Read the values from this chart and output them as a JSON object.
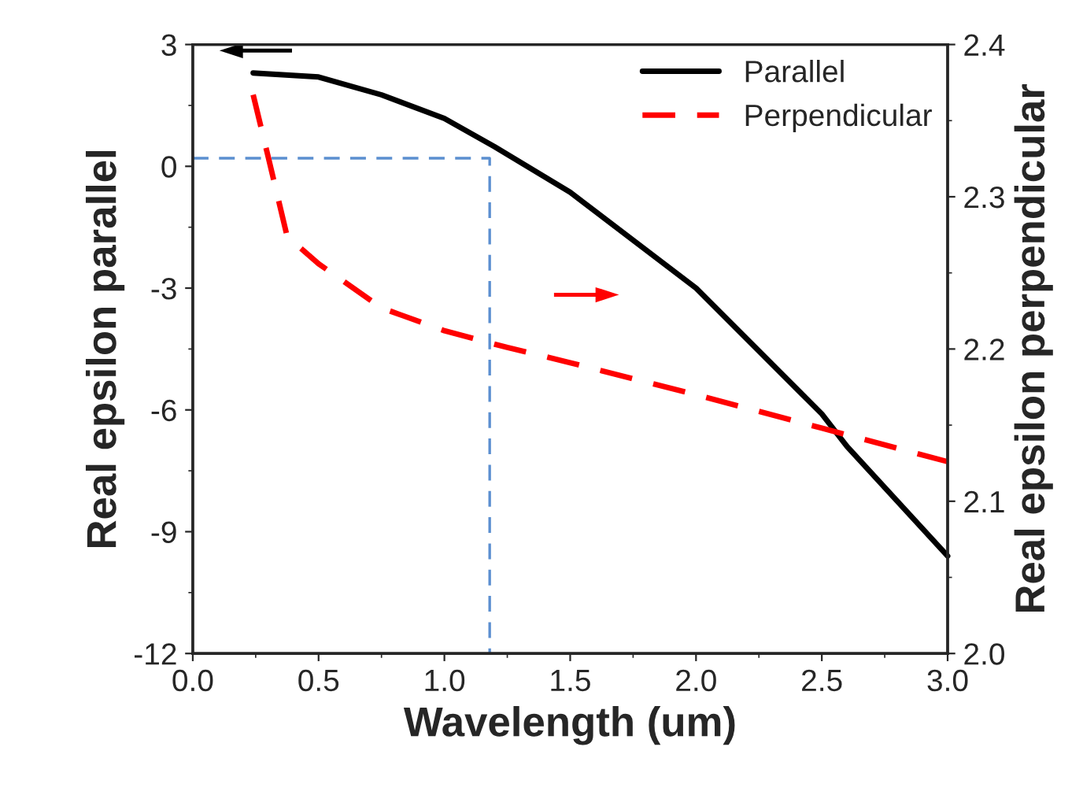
{
  "chart_data": {
    "type": "line",
    "xlabel": "Wavelength (um)",
    "ylabel": "Real epsilon parallel",
    "y2label": "Real epsilon perpendicular",
    "xlim": [
      0.0,
      3.0
    ],
    "xticks": [
      {
        "value": 0,
        "label": "0.0"
      },
      0.5,
      {
        "value": 1,
        "label": "1.0"
      },
      1.5,
      {
        "value": 2,
        "label": "2.0"
      },
      2.5,
      {
        "value": 3,
        "label": "3.0"
      }
    ],
    "ylim": [
      -12,
      3
    ],
    "yticks": [
      -12,
      -9,
      -6,
      -3,
      0,
      3
    ],
    "y2lim": [
      2.0,
      2.4
    ],
    "y2ticks": [
      {
        "value": 2.0,
        "label": "2.0"
      },
      2.1,
      2.2,
      2.3,
      2.4
    ],
    "legend": "top right",
    "grid": false,
    "series": [
      {
        "name": "Parallel",
        "color": "#000000",
        "line_style": "solid",
        "x": [
          0.24,
          0.5,
          0.75,
          1.0,
          1.2,
          1.5,
          2.0,
          2.5,
          2.6,
          3.0
        ],
        "values": [
          2.3,
          2.2,
          1.76,
          1.18,
          0.48,
          -0.64,
          -3.0,
          -6.1,
          -6.9,
          -9.6
        ]
      },
      {
        "name": "Perpendicular",
        "color": "#ff0000",
        "line_style": "dashed",
        "axis": "y2",
        "x": [
          0.24,
          0.3,
          0.375,
          0.5,
          0.75,
          1.0,
          1.25,
          1.5,
          2.0,
          2.5,
          3.0
        ],
        "values": [
          2.367,
          2.326,
          2.274,
          2.256,
          2.227,
          2.212,
          2.201,
          2.191,
          2.17,
          2.148,
          2.126
        ]
      },
      {
        "color": "#5b8fd0",
        "line_style": "dashed",
        "x": [
          0.0,
          1.18,
          1.18
        ],
        "values": [
          0.2,
          0.2,
          -12
        ]
      }
    ]
  }
}
